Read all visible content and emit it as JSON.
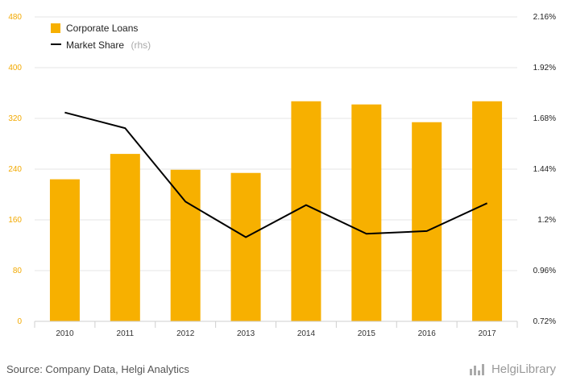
{
  "chart_data": {
    "type": "bar+line",
    "categories": [
      "2010",
      "2011",
      "2012",
      "2013",
      "2014",
      "2015",
      "2016",
      "2017"
    ],
    "series": [
      {
        "name": "Corporate Loans",
        "type": "bar",
        "axis": "left",
        "values": [
          224,
          264,
          239,
          234,
          347,
          342,
          314,
          347
        ]
      },
      {
        "name": "Market Share",
        "type": "line",
        "axis": "right",
        "values": [
          1.708,
          1.634,
          1.286,
          1.118,
          1.27,
          1.134,
          1.147,
          1.279
        ]
      }
    ],
    "y_left": {
      "min": 0,
      "max": 480,
      "ticks": [
        "0",
        "80",
        "160",
        "240",
        "320",
        "400",
        "480"
      ]
    },
    "y_right": {
      "min": 0.72,
      "max": 2.16,
      "ticks": [
        "0.72%",
        "0.96%",
        "1.2%",
        "1.44%",
        "1.68%",
        "1.92%",
        "2.16%"
      ]
    },
    "legend": {
      "position": "top-left",
      "bar_label": "Corporate Loans",
      "line_label": "Market Share",
      "line_suffix": "(rhs)"
    },
    "grid": true,
    "colors": {
      "bar": "#F7B000",
      "line": "#000000",
      "left_axis_text": "#F2A900",
      "grid": "#e6e6e6"
    }
  },
  "footer": {
    "source": "Source: Company Data, Helgi Analytics",
    "logo": "HelgiLibrary"
  }
}
